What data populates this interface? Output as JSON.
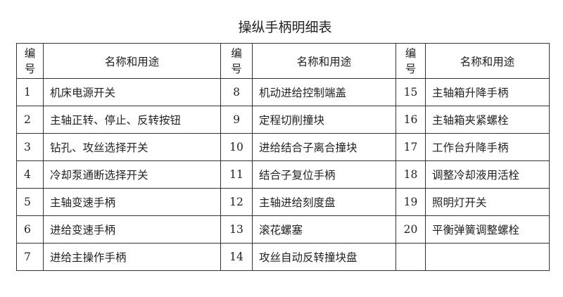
{
  "title": "操纵手柄明细表",
  "header": {
    "no": "编号",
    "no_line1": "编",
    "no_line2": "号",
    "name": "名称和用途"
  },
  "rows": [
    [
      {
        "no": "1",
        "name": "机床电源开关"
      },
      {
        "no": "8",
        "name": "机动进给控制端盖"
      },
      {
        "no": "15",
        "name": "主轴箱升降手柄"
      }
    ],
    [
      {
        "no": "2",
        "name": "主轴正转、停止、反转按钮"
      },
      {
        "no": "9",
        "name": "定程切削撞块"
      },
      {
        "no": "16",
        "name": "主轴箱夹紧螺栓"
      }
    ],
    [
      {
        "no": "3",
        "name": "钻孔、攻丝选择开关"
      },
      {
        "no": "10",
        "name": "进给结合子离合撞块"
      },
      {
        "no": "17",
        "name": "工作台升降手柄"
      }
    ],
    [
      {
        "no": "4",
        "name": "冷却泵通断选择开关"
      },
      {
        "no": "11",
        "name": "结合子复位手柄"
      },
      {
        "no": "18",
        "name": "调整冷却液用活栓"
      }
    ],
    [
      {
        "no": "5",
        "name": "主轴变速手柄"
      },
      {
        "no": "12",
        "name": "主轴进给刻度盘"
      },
      {
        "no": "19",
        "name": "照明灯开关"
      }
    ],
    [
      {
        "no": "6",
        "name": "进给变速手柄"
      },
      {
        "no": "13",
        "name": "滚花螺塞"
      },
      {
        "no": "20",
        "name": "平衡弹簧调整螺栓"
      }
    ],
    [
      {
        "no": "7",
        "name": "进给主操作手柄"
      },
      {
        "no": "14",
        "name": "攻丝自动反转撞块盘"
      },
      {
        "no": "",
        "name": ""
      }
    ]
  ]
}
